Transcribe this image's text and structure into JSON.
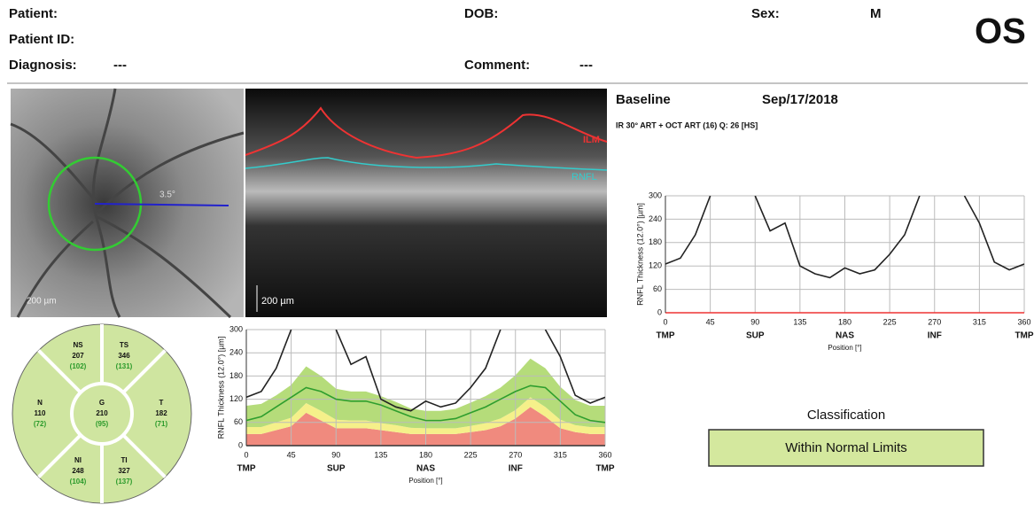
{
  "header": {
    "patient": "Patient:",
    "patient_id": "Patient ID:",
    "diagnosis": "Diagnosis:",
    "diagnosis_value": "---",
    "dob": "DOB:",
    "comment": "Comment:",
    "comment_value": "---",
    "sex": "Sex:",
    "sex_value": "M",
    "eye": "OS"
  },
  "images": {
    "fundus_scale": "200 µm",
    "oct_scale": "200 µm",
    "ilm": "ILM",
    "rnfl": "RNFL",
    "angle": "3.5°"
  },
  "exam": {
    "label": "Baseline",
    "date": "Sep/17/2018",
    "protocol": "IR 30° ART + OCT ART (16) Q: 26 [HS]"
  },
  "sectors": [
    {
      "label": "NS",
      "value": 207,
      "normal": "(102)"
    },
    {
      "label": "TS",
      "value": 346,
      "normal": "(131)"
    },
    {
      "label": "N",
      "value": 110,
      "normal": "(72)"
    },
    {
      "label": "G",
      "value": 210,
      "normal": "(95)"
    },
    {
      "label": "T",
      "value": 182,
      "normal": "(71)"
    },
    {
      "label": "NI",
      "value": 248,
      "normal": "(104)"
    },
    {
      "label": "TI",
      "value": 327,
      "normal": "(137)"
    }
  ],
  "classification": {
    "title": "Classification",
    "result": "Within Normal Limits",
    "color": "#d4e89e"
  },
  "chart_data": [
    {
      "type": "line",
      "ylabel": "RNFL Thickness (12.0°) [µm]",
      "xlabel": "Position [°]",
      "x": [
        0,
        15,
        30,
        45,
        60,
        75,
        90,
        105,
        120,
        135,
        150,
        165,
        180,
        195,
        210,
        225,
        240,
        255,
        270,
        285,
        300,
        315,
        330,
        345,
        360
      ],
      "xlim": [
        0,
        360
      ],
      "ylim": [
        0,
        300
      ],
      "xticks": [
        0,
        45,
        90,
        135,
        180,
        225,
        270,
        315,
        360
      ],
      "yticks": [
        0,
        60,
        120,
        180,
        240,
        300
      ],
      "sector_labels": [
        {
          "value": 0,
          "label": "TMP"
        },
        {
          "value": 90,
          "label": "SUP"
        },
        {
          "value": 180,
          "label": "NAS"
        },
        {
          "value": 270,
          "label": "INF"
        },
        {
          "value": 360,
          "label": "TMP"
        }
      ],
      "grid": true,
      "stacked_areas": [
        {
          "color": "#f08a7e",
          "values": [
            30,
            30,
            40,
            50,
            85,
            65,
            45,
            45,
            45,
            40,
            35,
            30,
            30,
            30,
            30,
            35,
            40,
            50,
            70,
            100,
            75,
            45,
            35,
            30,
            30
          ]
        },
        {
          "color": "#f5f08a",
          "values": [
            18,
            18,
            20,
            22,
            25,
            25,
            22,
            20,
            20,
            18,
            18,
            16,
            15,
            15,
            15,
            16,
            18,
            20,
            22,
            25,
            25,
            22,
            18,
            18,
            18
          ]
        },
        {
          "color": "#b5dc7a",
          "values": [
            55,
            60,
            70,
            85,
            95,
            90,
            80,
            75,
            75,
            70,
            60,
            50,
            45,
            45,
            50,
            60,
            70,
            80,
            90,
            100,
            100,
            85,
            65,
            55,
            55
          ]
        }
      ],
      "series": [
        {
          "color": "#2e9e2e",
          "values": [
            65,
            75,
            100,
            125,
            150,
            140,
            120,
            115,
            115,
            105,
            90,
            75,
            65,
            65,
            70,
            85,
            100,
            120,
            140,
            155,
            150,
            115,
            80,
            65,
            60
          ]
        },
        {
          "color": "#222222",
          "values": [
            125,
            140,
            200,
            300,
            null,
            null,
            300,
            210,
            230,
            120,
            100,
            90,
            115,
            100,
            110,
            150,
            200,
            300,
            null,
            null,
            300,
            230,
            130,
            110,
            125
          ]
        }
      ]
    },
    {
      "type": "line",
      "ylabel": "RNFL Thickness (12.0°) [µm]",
      "xlabel": "Position [°]",
      "x": [
        0,
        15,
        30,
        45,
        60,
        75,
        90,
        105,
        120,
        135,
        150,
        165,
        180,
        195,
        210,
        225,
        240,
        255,
        270,
        285,
        300,
        315,
        330,
        345,
        360
      ],
      "xlim": [
        0,
        360
      ],
      "ylim": [
        0,
        300
      ],
      "xticks": [
        0,
        45,
        90,
        135,
        180,
        225,
        270,
        315,
        360
      ],
      "yticks": [
        0,
        60,
        120,
        180,
        240,
        300
      ],
      "sector_labels": [
        {
          "value": 0,
          "label": "TMP"
        },
        {
          "value": 90,
          "label": "SUP"
        },
        {
          "value": 180,
          "label": "NAS"
        },
        {
          "value": 270,
          "label": "INF"
        },
        {
          "value": 360,
          "label": "TMP"
        }
      ],
      "grid": true,
      "series": [
        {
          "color": "#222222",
          "values": [
            125,
            140,
            200,
            300,
            null,
            null,
            300,
            210,
            230,
            120,
            100,
            90,
            115,
            100,
            110,
            150,
            200,
            300,
            null,
            null,
            300,
            230,
            130,
            110,
            125
          ]
        }
      ]
    }
  ]
}
